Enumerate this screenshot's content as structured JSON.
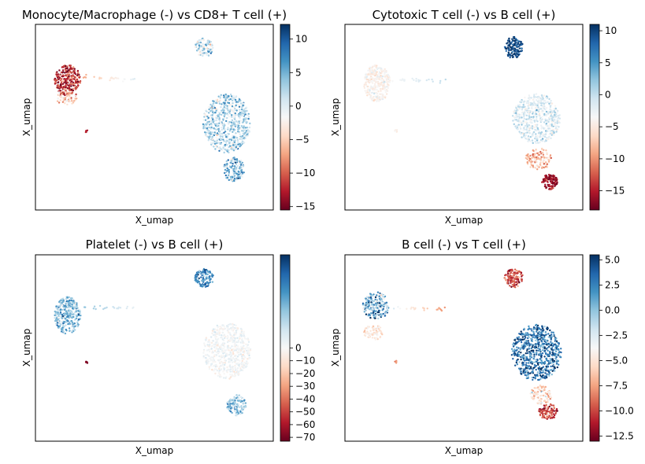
{
  "chart_data": [
    {
      "type": "scatter",
      "title": "Monocyte/Macrophage (-) vs CD8+ T cell (+)",
      "xlabel": "X_umap",
      "ylabel": "X_umap",
      "colormap": "RdBu",
      "colorbar": {
        "min": -15.5,
        "max": 12.2,
        "ticks": [
          10,
          5,
          0,
          -5,
          -10,
          -15
        ],
        "tick_labels": [
          "10",
          "5",
          "0",
          "−5",
          "−10",
          "−15"
        ]
      },
      "clusters": [
        {
          "name": "left cluster",
          "cx": 2.7,
          "cy": 8.4,
          "rx": 1.1,
          "ry": 1.0,
          "n": 260,
          "value": -11.5,
          "spread": 3.0
        },
        {
          "name": "left lower band",
          "cx": 2.6,
          "cy": 7.3,
          "rx": 0.9,
          "ry": 0.5,
          "n": 70,
          "value": -4.5,
          "spread": 2.5
        },
        {
          "name": "small isolated cluster",
          "cx": 4.3,
          "cy": 5.1,
          "rx": 0.1,
          "ry": 0.1,
          "n": 6,
          "value": -12,
          "spread": 1
        },
        {
          "name": "top-right cluster",
          "cx": 14.2,
          "cy": 10.5,
          "rx": 0.8,
          "ry": 0.6,
          "n": 110,
          "value": 2,
          "spread": 3.0
        },
        {
          "name": "right main cluster",
          "cx": 16.1,
          "cy": 5.6,
          "rx": 2.0,
          "ry": 1.9,
          "n": 620,
          "value": 3.5,
          "spread": 2.5
        },
        {
          "name": "right bottom tail",
          "cx": 16.7,
          "cy": 2.6,
          "rx": 0.9,
          "ry": 0.8,
          "n": 150,
          "value": 5,
          "spread": 3.0
        }
      ],
      "trails": [
        {
          "from": [
            4.0,
            8.6
          ],
          "to": [
            8.5,
            8.4
          ],
          "n": 22,
          "value_from": -6,
          "value_to": 2
        }
      ],
      "xlim": [
        0,
        20
      ],
      "ylim": [
        0,
        12
      ]
    },
    {
      "type": "scatter",
      "title": "Cytotoxic T cell (-) vs B cell (+)",
      "xlabel": "X_umap",
      "ylabel": "X_umap",
      "colormap": "RdBu",
      "colorbar": {
        "min": -18,
        "max": 11,
        "ticks": [
          10,
          5,
          0,
          -5,
          -10,
          -15
        ],
        "tick_labels": [
          "10",
          "5",
          "0",
          "−5",
          "−10",
          "−15"
        ]
      },
      "clusters": [
        {
          "name": "left cluster",
          "cx": 2.7,
          "cy": 8.2,
          "rx": 1.1,
          "ry": 1.2,
          "n": 320,
          "value": -1.0,
          "spread": 1.2
        },
        {
          "name": "small isolated cluster",
          "cx": 4.3,
          "cy": 5.1,
          "rx": 0.1,
          "ry": 0.1,
          "n": 6,
          "value": -1,
          "spread": 0.5
        },
        {
          "name": "top-right cluster",
          "cx": 14.2,
          "cy": 10.5,
          "rx": 0.8,
          "ry": 0.7,
          "n": 130,
          "value": 10,
          "spread": 1.0
        },
        {
          "name": "right main cluster",
          "cx": 16.1,
          "cy": 5.9,
          "rx": 2.0,
          "ry": 1.6,
          "n": 560,
          "value": 1.5,
          "spread": 1.5
        },
        {
          "name": "right lower cluster",
          "cx": 16.3,
          "cy": 3.3,
          "rx": 1.1,
          "ry": 0.7,
          "n": 130,
          "value": -6,
          "spread": 2.5
        },
        {
          "name": "right bottom tail",
          "cx": 17.2,
          "cy": 1.8,
          "rx": 0.7,
          "ry": 0.5,
          "n": 110,
          "value": -15,
          "spread": 2.0
        }
      ],
      "trails": [
        {
          "from": [
            4.0,
            8.4
          ],
          "to": [
            8.5,
            8.4
          ],
          "n": 22,
          "value_from": 0,
          "value_to": 3
        }
      ],
      "xlim": [
        0,
        20
      ],
      "ylim": [
        0,
        12
      ]
    },
    {
      "type": "scatter",
      "title": "Platelet (-) vs B cell (+)",
      "xlabel": "X_umap",
      "ylabel": "X_umap",
      "colormap": "RdBu",
      "colorbar": {
        "min": -73,
        "max": 73,
        "ticks": [
          0,
          -10,
          -20,
          -30,
          -40,
          -50,
          -60,
          -70
        ],
        "tick_labels": [
          "0",
          "−10",
          "−20",
          "−30",
          "−40",
          "−50",
          "−60",
          "−70"
        ]
      },
      "clusters": [
        {
          "name": "left cluster",
          "cx": 2.7,
          "cy": 8.1,
          "rx": 1.1,
          "ry": 1.2,
          "n": 320,
          "value": 30,
          "spread": 14
        },
        {
          "name": "small isolated cluster",
          "cx": 4.3,
          "cy": 5.1,
          "rx": 0.1,
          "ry": 0.1,
          "n": 6,
          "value": -68,
          "spread": 3
        },
        {
          "name": "top-right cluster",
          "cx": 14.2,
          "cy": 10.5,
          "rx": 0.8,
          "ry": 0.6,
          "n": 120,
          "value": 45,
          "spread": 12
        },
        {
          "name": "right main cluster",
          "cx": 16.1,
          "cy": 5.8,
          "rx": 2.0,
          "ry": 1.8,
          "n": 600,
          "value": 2,
          "spread": 5
        },
        {
          "name": "right bottom tail",
          "cx": 16.9,
          "cy": 2.3,
          "rx": 0.8,
          "ry": 0.7,
          "n": 130,
          "value": 30,
          "spread": 12
        }
      ],
      "trails": [
        {
          "from": [
            4.0,
            8.6
          ],
          "to": [
            8.5,
            8.6
          ],
          "n": 20,
          "value_from": 30,
          "value_to": 5
        }
      ],
      "xlim": [
        0,
        20
      ],
      "ylim": [
        0,
        12
      ]
    },
    {
      "type": "scatter",
      "title": "B cell (-) vs T cell (+)",
      "xlabel": "X_umap",
      "ylabel": "X_umap",
      "colormap": "RdBu",
      "colorbar": {
        "min": -13,
        "max": 5.5,
        "ticks": [
          5.0,
          2.5,
          0.0,
          -2.5,
          -5.0,
          -7.5,
          -10.0,
          -12.5
        ],
        "tick_labels": [
          "5.0",
          "2.5",
          "0.0",
          "−2.5",
          "−5.0",
          "−7.5",
          "−10.0",
          "−12.5"
        ]
      },
      "clusters": [
        {
          "name": "left cluster",
          "cx": 2.6,
          "cy": 8.7,
          "rx": 1.1,
          "ry": 0.9,
          "n": 230,
          "value": 2.5,
          "spread": 1.8
        },
        {
          "name": "left lower band",
          "cx": 2.4,
          "cy": 7.0,
          "rx": 0.8,
          "ry": 0.5,
          "n": 80,
          "value": -1.5,
          "spread": 1.2
        },
        {
          "name": "small isolated cluster",
          "cx": 4.3,
          "cy": 5.1,
          "rx": 0.1,
          "ry": 0.1,
          "n": 6,
          "value": -6,
          "spread": 1
        },
        {
          "name": "top-right cluster",
          "cx": 14.2,
          "cy": 10.5,
          "rx": 0.8,
          "ry": 0.6,
          "n": 120,
          "value": -9,
          "spread": 2.0
        },
        {
          "name": "right main cluster",
          "cx": 16.1,
          "cy": 5.7,
          "rx": 2.1,
          "ry": 1.8,
          "n": 640,
          "value": 4,
          "spread": 1.2
        },
        {
          "name": "right lower cluster",
          "cx": 16.5,
          "cy": 3.0,
          "rx": 0.9,
          "ry": 0.6,
          "n": 90,
          "value": -3,
          "spread": 2.0
        },
        {
          "name": "right bottom tail",
          "cx": 17.1,
          "cy": 1.9,
          "rx": 0.8,
          "ry": 0.5,
          "n": 100,
          "value": -9,
          "spread": 2.0
        }
      ],
      "trails": [
        {
          "from": [
            4.0,
            8.5
          ],
          "to": [
            8.5,
            8.5
          ],
          "n": 22,
          "value_from": 1,
          "value_to": -6
        }
      ],
      "xlim": [
        0,
        20
      ],
      "ylim": [
        0,
        12
      ]
    }
  ]
}
